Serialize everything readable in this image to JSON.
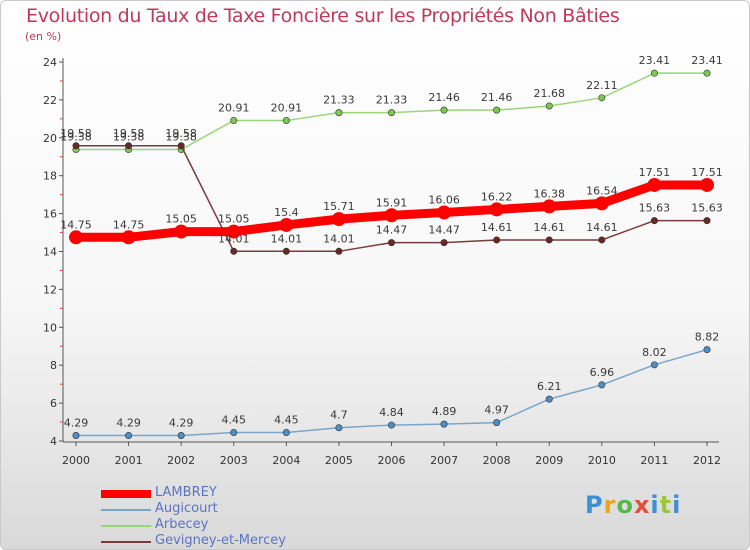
{
  "header": {
    "title": "Evolution du Taux de Taxe Foncière sur les Propriétés Non Bâties",
    "unit": "(en %)"
  },
  "logo": {
    "text": "Proxiti"
  },
  "chart_data": {
    "type": "line",
    "categories": [
      "2000",
      "2001",
      "2002",
      "2003",
      "2004",
      "2005",
      "2006",
      "2007",
      "2008",
      "2009",
      "2010",
      "2011",
      "2012"
    ],
    "ylim": [
      4,
      24
    ],
    "yticks": [
      4,
      6,
      8,
      10,
      12,
      14,
      16,
      18,
      20,
      22,
      24
    ],
    "grid": false,
    "legend_placement": "bottom-left",
    "series": [
      {
        "name": "LAMBREY",
        "color": "#ff0000",
        "marker_color": "#ff0000",
        "values": [
          14.75,
          14.75,
          15.05,
          15.05,
          15.4,
          15.71,
          15.91,
          16.06,
          16.22,
          16.38,
          16.54,
          17.51,
          17.51
        ],
        "labels": [
          "14.75",
          "14.75",
          "15.05",
          "15.05",
          "15.4",
          "15.71",
          "15.91",
          "16.06",
          "16.22",
          "16.38",
          "16.54",
          "17.51",
          "17.51"
        ]
      },
      {
        "name": "Augicourt",
        "color": "#7aa6cc",
        "marker_color": "#4f8fc8",
        "values": [
          4.29,
          4.29,
          4.29,
          4.45,
          4.45,
          4.7,
          4.84,
          4.89,
          4.97,
          6.21,
          6.96,
          8.02,
          8.82
        ],
        "labels": [
          "4.29",
          "4.29",
          "4.29",
          "4.45",
          "4.45",
          "4.7",
          "4.84",
          "4.89",
          "4.97",
          "6.21",
          "6.96",
          "8.02",
          "8.82"
        ]
      },
      {
        "name": "Arbecey",
        "color": "#99d67a",
        "marker_color": "#7cc94f",
        "values": [
          19.38,
          19.38,
          19.38,
          20.91,
          20.91,
          21.33,
          21.33,
          21.46,
          21.46,
          21.68,
          22.11,
          23.41,
          23.41
        ],
        "labels": [
          "19.38",
          "19.38",
          "19.38",
          "20.91",
          "20.91",
          "21.33",
          "21.33",
          "21.46",
          "21.46",
          "21.68",
          "22.11",
          "23.41",
          "23.41"
        ]
      },
      {
        "name": "Gevigney-et-Mercey",
        "color": "#7a3b3b",
        "marker_color": "#6b2626",
        "values": [
          19.58,
          19.58,
          19.58,
          14.01,
          14.01,
          14.01,
          14.47,
          14.47,
          14.61,
          14.61,
          14.61,
          15.63,
          15.63
        ],
        "labels": [
          "19.58",
          "19.58",
          "19.58",
          "14.01",
          "14.01",
          "14.01",
          "14.47",
          "14.47",
          "14.61",
          "14.61",
          "14.61",
          "15.63",
          "15.63"
        ]
      }
    ]
  }
}
